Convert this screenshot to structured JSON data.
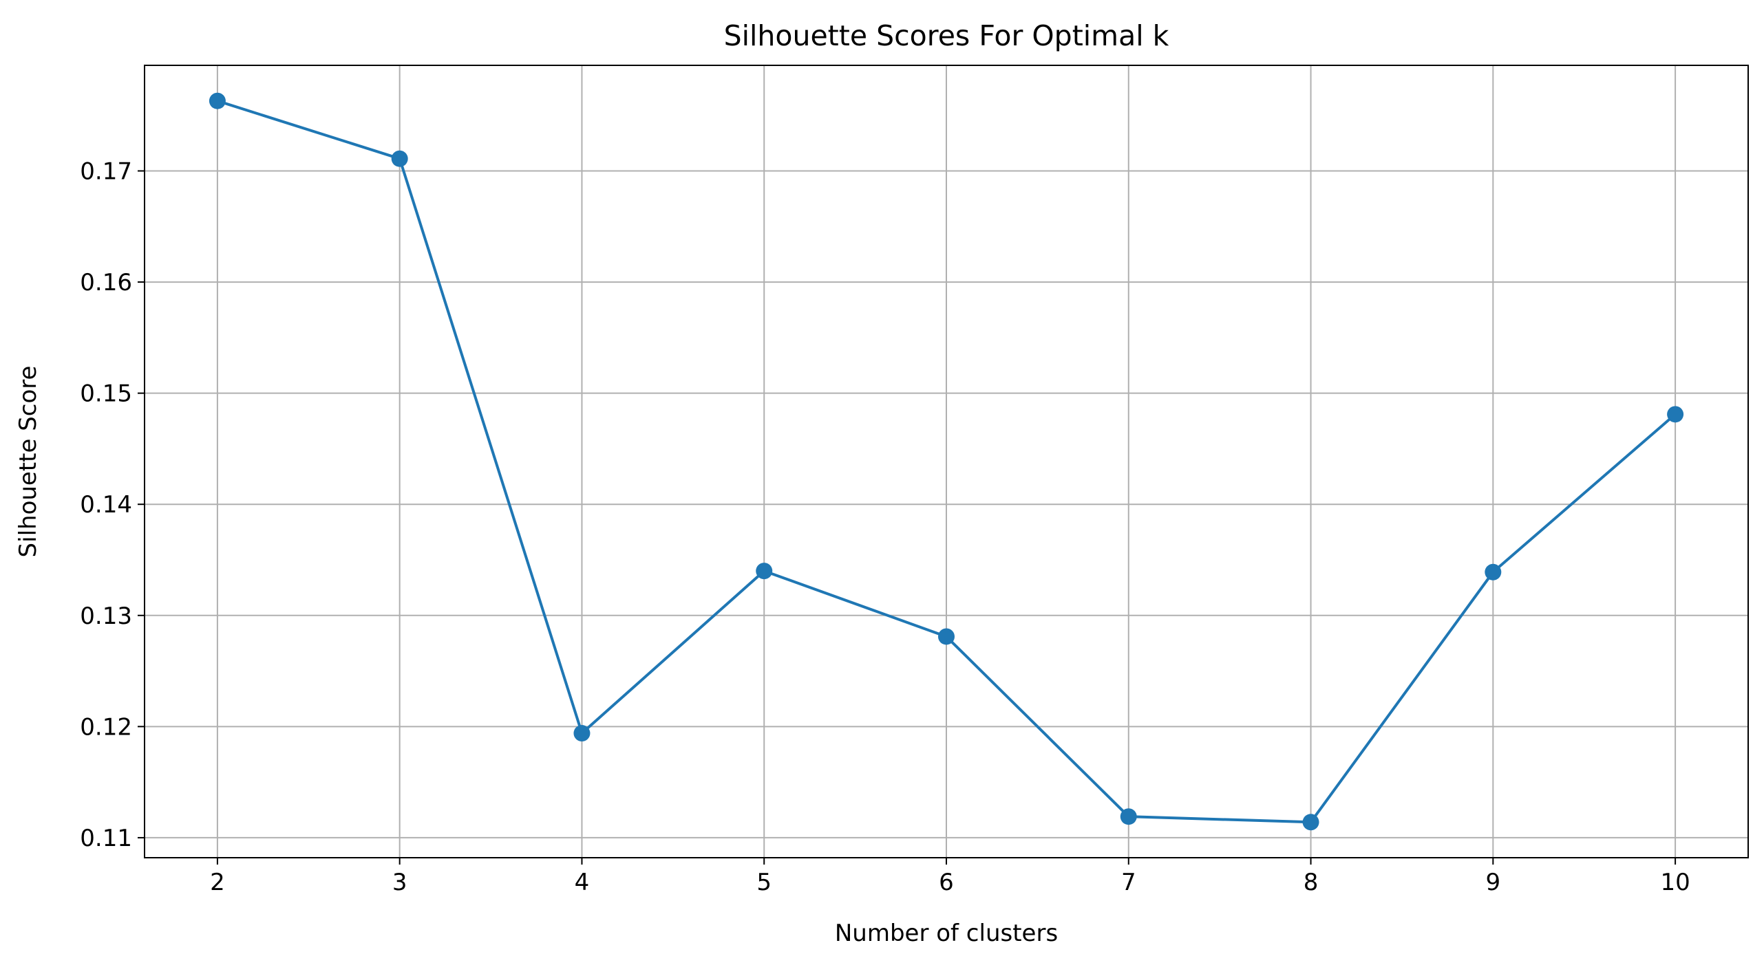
{
  "chart_data": {
    "type": "line",
    "title": "Silhouette Scores For Optimal k",
    "xlabel": "Number of clusters",
    "ylabel": "Silhouette Score",
    "x": [
      2,
      3,
      4,
      5,
      6,
      7,
      8,
      9,
      10
    ],
    "series": [
      {
        "values": [
          0.1763,
          0.1711,
          0.1194,
          0.134,
          0.1281,
          0.1119,
          0.1114,
          0.1339,
          0.1481
        ],
        "color": "#1f77b4",
        "marker": "circle"
      }
    ],
    "xticks": [
      "2",
      "3",
      "4",
      "5",
      "6",
      "7",
      "8",
      "9",
      "10"
    ],
    "yticks": [
      "0.11",
      "0.12",
      "0.13",
      "0.14",
      "0.15",
      "0.16",
      "0.17"
    ],
    "xlim": [
      1.6,
      10.4
    ],
    "ylim": [
      0.1082,
      0.1795
    ],
    "grid": true
  }
}
